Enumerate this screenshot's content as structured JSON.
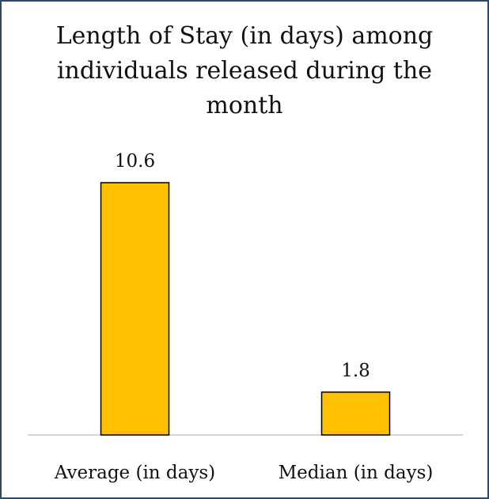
{
  "chart_data": {
    "type": "bar",
    "title": "Length of Stay (in days) among individuals released during the month",
    "categories": [
      "Average (in days)",
      "Median (in days)"
    ],
    "values": [
      10.6,
      1.8
    ],
    "color": "#ffc000"
  }
}
